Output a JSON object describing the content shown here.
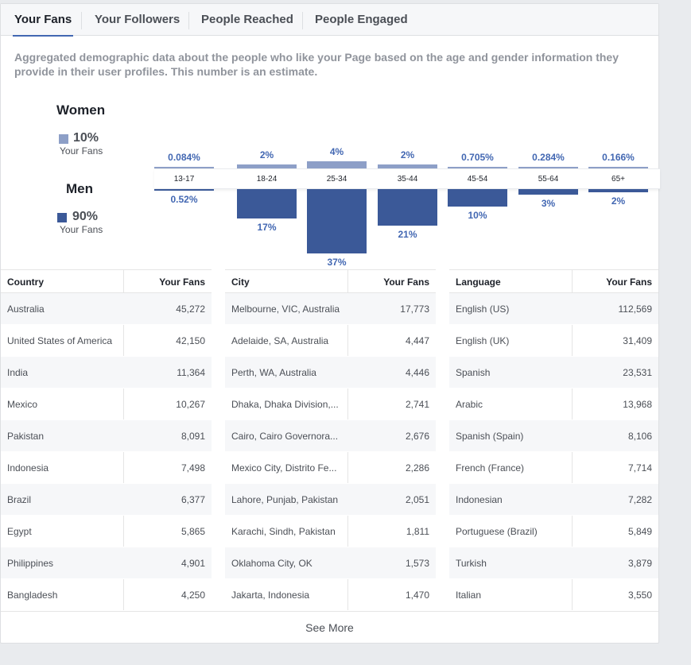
{
  "tabs": [
    "Your Fans",
    "Your Followers",
    "People Reached",
    "People Engaged"
  ],
  "description": "Aggregated demographic data about the people who like your Page based on the age and gender information they provide in their user profiles. This number is an estimate.",
  "legend": {
    "women": {
      "title": "Women",
      "pct": "10%",
      "sub": "Your Fans",
      "color": "#8d9fc7"
    },
    "men": {
      "title": "Men",
      "pct": "90%",
      "sub": "Your Fans",
      "color": "#3b5998"
    }
  },
  "chart_data": {
    "type": "bar",
    "categories": [
      "13-17",
      "18-24",
      "25-34",
      "35-44",
      "45-54",
      "55-64",
      "65+"
    ],
    "series": [
      {
        "name": "Women",
        "values": [
          0.084,
          2,
          4,
          2,
          0.705,
          0.284,
          0.166
        ],
        "labels": [
          "0.084%",
          "2%",
          "4%",
          "2%",
          "0.705%",
          "0.284%",
          "0.166%"
        ]
      },
      {
        "name": "Men",
        "values": [
          0.52,
          17,
          37,
          21,
          10,
          3,
          2
        ],
        "labels": [
          "0.52%",
          "17%",
          "37%",
          "21%",
          "10%",
          "3%",
          "2%"
        ]
      }
    ]
  },
  "country_table": {
    "headers": [
      "Country",
      "Your Fans"
    ],
    "rows": [
      [
        "Australia",
        "45,272"
      ],
      [
        "United States of America",
        "42,150"
      ],
      [
        "India",
        "11,364"
      ],
      [
        "Mexico",
        "10,267"
      ],
      [
        "Pakistan",
        "8,091"
      ],
      [
        "Indonesia",
        "7,498"
      ],
      [
        "Brazil",
        "6,377"
      ],
      [
        "Egypt",
        "5,865"
      ],
      [
        "Philippines",
        "4,901"
      ],
      [
        "Bangladesh",
        "4,250"
      ]
    ]
  },
  "city_table": {
    "headers": [
      "City",
      "Your Fans"
    ],
    "rows": [
      [
        "Melbourne, VIC, Australia",
        "17,773"
      ],
      [
        "Adelaide, SA, Australia",
        "4,447"
      ],
      [
        "Perth, WA, Australia",
        "4,446"
      ],
      [
        "Dhaka, Dhaka Division,...",
        "2,741"
      ],
      [
        "Cairo, Cairo Governora...",
        "2,676"
      ],
      [
        "Mexico City, Distrito Fe...",
        "2,286"
      ],
      [
        "Lahore, Punjab, Pakistan",
        "2,051"
      ],
      [
        "Karachi, Sindh, Pakistan",
        "1,811"
      ],
      [
        "Oklahoma City, OK",
        "1,573"
      ],
      [
        "Jakarta, Indonesia",
        "1,470"
      ]
    ]
  },
  "language_table": {
    "headers": [
      "Language",
      "Your Fans"
    ],
    "rows": [
      [
        "English (US)",
        "112,569"
      ],
      [
        "English (UK)",
        "31,409"
      ],
      [
        "Spanish",
        "23,531"
      ],
      [
        "Arabic",
        "13,968"
      ],
      [
        "Spanish (Spain)",
        "8,106"
      ],
      [
        "French (France)",
        "7,714"
      ],
      [
        "Indonesian",
        "7,282"
      ],
      [
        "Portuguese (Brazil)",
        "5,849"
      ],
      [
        "Turkish",
        "3,879"
      ],
      [
        "Italian",
        "3,550"
      ]
    ]
  },
  "see_more": "See More"
}
